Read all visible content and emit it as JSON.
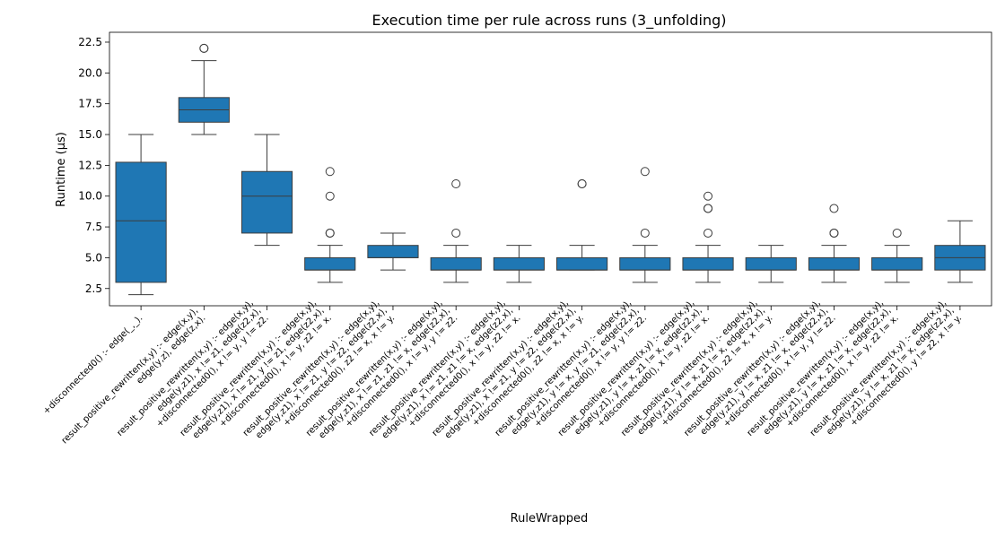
{
  "chart_data": {
    "type": "box",
    "title": "Execution time per rule across runs (3_unfolding)",
    "xlabel": "RuleWrapped",
    "ylabel": "Runtime (µs)",
    "ylim": [
      1.1,
      23.3
    ],
    "yticks": [
      "2.5",
      "5.0",
      "7.5",
      "10.0",
      "12.5",
      "15.0",
      "17.5",
      "20.0",
      "22.5"
    ],
    "grid": false,
    "color": "#1f77b4",
    "categories": [
      [
        "+disconnected0() :-     edge(_,_)."
      ],
      [
        "result_positive_rewritten(x,y) :-     edge(x,y),",
        "edge(y,z),    edge(z,x)."
      ],
      [
        "result_positive_rewritten(x,y) :-     edge(x,y),",
        "edge(y,z1),   x != z1,   edge(z2,x),",
        "+disconnected0(),    x != y,    y != z2."
      ],
      [
        "result_positive_rewritten(x,y) :-     edge(x,y),",
        "edge(y,z1),   x != z1,   y != z1,  edge(z2,x),",
        "+disconnected0(),    x != y,    z2 != x."
      ],
      [
        "result_positive_rewritten(x,y) :-     edge(x,y),",
        "edge(y,z1),   x != z1,   y != z2,  edge(z2,x),",
        "+disconnected0(),    z2 != x,   x != y."
      ],
      [
        "result_positive_rewritten(x,y) :-     edge(x,y),",
        "edge(y,z1),   x != z1,   z1 != x,  edge(z2,x),",
        "+disconnected0(),    x != y,    y != z2."
      ],
      [
        "result_positive_rewritten(x,y) :-     edge(x,y),",
        "edge(y,z1),   x != z1,   z1 != x,  edge(z2,x),",
        "+disconnected0(),    x != y,    z2 != x."
      ],
      [
        "result_positive_rewritten(x,y) :-     edge(x,y),",
        "edge(y,z1),   x != z1,   y != z2,  edge(z2,x),",
        "+disconnected0(),    z2 != x,   x != y."
      ],
      [
        "result_positive_rewritten(x,y) :-     edge(x,y),",
        "edge(y,z1),   y != x,    y != z1,  edge(z2,x),",
        "+disconnected0(),    x != y,    y != z2."
      ],
      [
        "result_positive_rewritten(x,y) :-     edge(x,y),",
        "edge(y,z1),   y != x,    z1 != x,  edge(z2,x),",
        "+disconnected0(),    x != y,    z2 != x."
      ],
      [
        "result_positive_rewritten(x,y) :-     edge(x,y),",
        "edge(y,z1),   y != x,    z1 != x,  edge(z2,x),",
        "+disconnected0(),    z2 != x,   x != y."
      ],
      [
        "result_positive_rewritten(x,y) :-     edge(x,y),",
        "edge(y,z1),   y != x,    z1 != x,  edge(z2,x),",
        "+disconnected0(),    x != y,    y != z2."
      ],
      [
        "result_positive_rewritten(x,y) :-     edge(x,y),",
        "edge(y,z1),   y != x,    z1 != x,  edge(z2,x),",
        "+disconnected0(),    x != y,    z2 != x."
      ],
      [
        "result_positive_rewritten(x,y) :-     edge(x,y),",
        "edge(y,z1),   y != x,    z1 != x,  edge(z2,x),",
        "+disconnected0(),    y != z2,   x != y."
      ]
    ],
    "boxes": [
      {
        "whislo": 2,
        "q1": 3,
        "med": 8,
        "q3": 12.75,
        "whishi": 15,
        "fliers": []
      },
      {
        "whislo": 15,
        "q1": 16,
        "med": 17,
        "q3": 18,
        "whishi": 21,
        "fliers": [
          22,
          22
        ]
      },
      {
        "whislo": 6,
        "q1": 7,
        "med": 10,
        "q3": 12,
        "whishi": 15,
        "fliers": []
      },
      {
        "whislo": 3,
        "q1": 4,
        "med": 4,
        "q3": 5,
        "whishi": 6,
        "fliers": [
          7,
          7,
          10,
          12
        ]
      },
      {
        "whislo": 4,
        "q1": 5,
        "med": 5,
        "q3": 6,
        "whishi": 7,
        "fliers": []
      },
      {
        "whislo": 3,
        "q1": 4,
        "med": 4,
        "q3": 5,
        "whishi": 6,
        "fliers": [
          7,
          11
        ]
      },
      {
        "whislo": 3,
        "q1": 4,
        "med": 4,
        "q3": 5,
        "whishi": 6,
        "fliers": []
      },
      {
        "whislo": 4,
        "q1": 4,
        "med": 4,
        "q3": 5,
        "whishi": 6,
        "fliers": [
          11,
          11
        ]
      },
      {
        "whislo": 3,
        "q1": 4,
        "med": 4,
        "q3": 5,
        "whishi": 6,
        "fliers": [
          7,
          12
        ]
      },
      {
        "whislo": 3,
        "q1": 4,
        "med": 4,
        "q3": 5,
        "whishi": 6,
        "fliers": [
          7,
          9,
          9,
          10
        ]
      },
      {
        "whislo": 3,
        "q1": 4,
        "med": 4,
        "q3": 5,
        "whishi": 6,
        "fliers": []
      },
      {
        "whislo": 3,
        "q1": 4,
        "med": 4,
        "q3": 5,
        "whishi": 6,
        "fliers": [
          7,
          7,
          9
        ]
      },
      {
        "whislo": 3,
        "q1": 4,
        "med": 4,
        "q3": 5,
        "whishi": 6,
        "fliers": [
          7
        ]
      },
      {
        "whislo": 3,
        "q1": 4,
        "med": 5,
        "q3": 6,
        "whishi": 8,
        "fliers": []
      }
    ]
  }
}
